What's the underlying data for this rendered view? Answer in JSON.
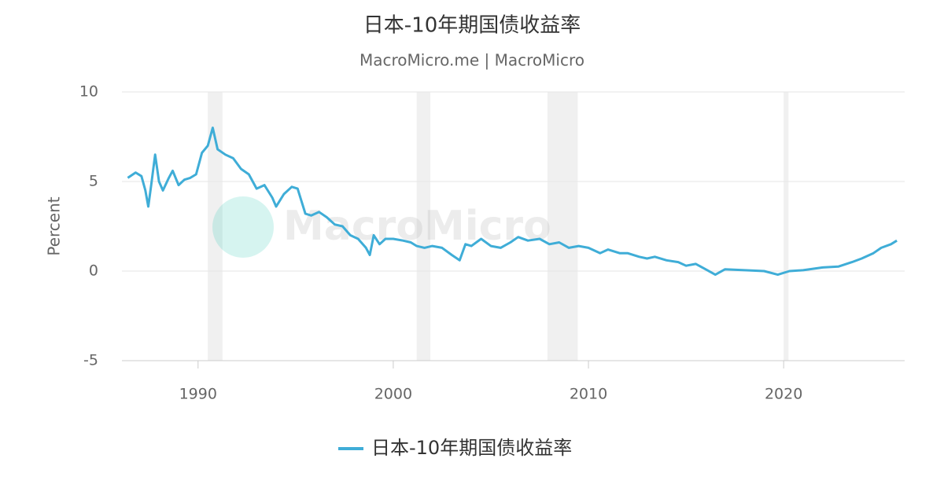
{
  "chart_data": {
    "type": "line",
    "title": "日本-10年期国债收益率",
    "subtitle": "MacroMicro.me | MacroMicro",
    "watermark": "MacroMicro",
    "y_label": "Percent",
    "xlim": [
      1986.1,
      2026.2
    ],
    "xticks": [
      1990,
      2000,
      2010,
      2020
    ],
    "ylim": [
      -5,
      10
    ],
    "yticks": [
      -5,
      0,
      5,
      10
    ],
    "grid": true,
    "legend": "bottom",
    "shaded_ranges": [
      [
        1990.5,
        1991.25
      ],
      [
        2001.2,
        2001.9
      ],
      [
        2007.9,
        2009.45
      ],
      [
        2020.0,
        2020.25
      ]
    ],
    "x": [
      1986.4,
      1986.8,
      1987.1,
      1987.3,
      1987.45,
      1987.6,
      1987.8,
      1988.0,
      1988.2,
      1988.5,
      1988.7,
      1989.0,
      1989.3,
      1989.6,
      1989.9,
      1990.2,
      1990.5,
      1990.75,
      1991.0,
      1991.4,
      1991.8,
      1992.2,
      1992.6,
      1993.0,
      1993.4,
      1993.8,
      1994.0,
      1994.4,
      1994.8,
      1995.1,
      1995.5,
      1995.8,
      1996.2,
      1996.6,
      1997.0,
      1997.4,
      1997.8,
      1998.2,
      1998.6,
      1998.8,
      1999.0,
      1999.3,
      1999.6,
      2000.0,
      2000.5,
      2000.9,
      2001.2,
      2001.6,
      2002.0,
      2002.5,
      2003.0,
      2003.4,
      2003.7,
      2004.0,
      2004.5,
      2005.0,
      2005.5,
      2006.0,
      2006.4,
      2006.9,
      2007.5,
      2008.0,
      2008.5,
      2009.0,
      2009.5,
      2010.0,
      2010.6,
      2011.0,
      2011.6,
      2012.0,
      2012.6,
      2013.0,
      2013.4,
      2014.0,
      2014.6,
      2015.0,
      2015.5,
      2016.0,
      2016.5,
      2017.0,
      2018.0,
      2019.0,
      2019.7,
      2020.3,
      2021.0,
      2022.0,
      2022.8,
      2023.5,
      2024.0,
      2024.6,
      2025.0,
      2025.5,
      2025.8
    ],
    "series": [
      {
        "name": "日本-10年期国债收益率",
        "color": "#3fadd7",
        "values": [
          5.2,
          5.5,
          5.3,
          4.5,
          3.6,
          4.8,
          6.5,
          5.0,
          4.5,
          5.2,
          5.6,
          4.8,
          5.1,
          5.2,
          5.4,
          6.6,
          7.0,
          8.0,
          6.8,
          6.5,
          6.3,
          5.7,
          5.4,
          4.6,
          4.8,
          4.1,
          3.6,
          4.3,
          4.7,
          4.6,
          3.2,
          3.1,
          3.3,
          3.0,
          2.6,
          2.5,
          2.0,
          1.8,
          1.3,
          0.9,
          2.0,
          1.5,
          1.8,
          1.8,
          1.7,
          1.6,
          1.4,
          1.3,
          1.4,
          1.3,
          0.9,
          0.6,
          1.5,
          1.4,
          1.8,
          1.4,
          1.3,
          1.6,
          1.9,
          1.7,
          1.8,
          1.5,
          1.6,
          1.3,
          1.4,
          1.3,
          1.0,
          1.2,
          1.0,
          1.0,
          0.8,
          0.7,
          0.8,
          0.6,
          0.5,
          0.3,
          0.4,
          0.1,
          -0.2,
          0.1,
          0.05,
          0.0,
          -0.2,
          0.0,
          0.05,
          0.2,
          0.25,
          0.5,
          0.7,
          1.0,
          1.3,
          1.5,
          1.7
        ]
      }
    ]
  }
}
